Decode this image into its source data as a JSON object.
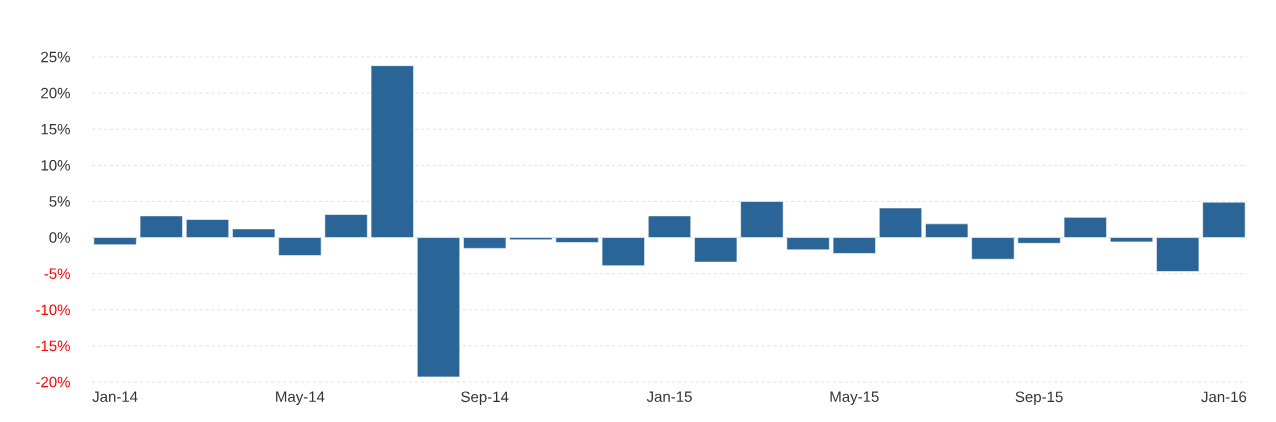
{
  "chart_data": {
    "type": "bar",
    "categories": [
      "Jan-14",
      null,
      null,
      null,
      "May-14",
      null,
      null,
      null,
      "Sep-14",
      null,
      null,
      null,
      "Jan-15",
      null,
      null,
      null,
      "May-15",
      null,
      null,
      null,
      "Sep-15",
      null,
      null,
      null,
      "Jan-16"
    ],
    "values": [
      -1.0,
      3.0,
      2.5,
      1.2,
      -2.5,
      3.2,
      23.8,
      -19.3,
      -1.5,
      -0.3,
      -0.7,
      -3.9,
      3.0,
      -3.4,
      5.0,
      -1.7,
      -2.2,
      4.1,
      1.9,
      -3.0,
      -0.8,
      2.8,
      -0.6,
      -4.7,
      4.9
    ],
    "color": "#2b6496",
    "ylim": [
      -20,
      25
    ],
    "yticks": [
      {
        "value": -20,
        "label": "-20%"
      },
      {
        "value": -15,
        "label": "-15%"
      },
      {
        "value": -10,
        "label": "-10%"
      },
      {
        "value": -5,
        "label": "-5%"
      },
      {
        "value": 0,
        "label": "0%"
      },
      {
        "value": 5,
        "label": "5%"
      },
      {
        "value": 10,
        "label": "10%"
      },
      {
        "value": 15,
        "label": "15%"
      },
      {
        "value": 20,
        "label": "20%"
      },
      {
        "value": 25,
        "label": "25%"
      }
    ],
    "grid": "y"
  }
}
